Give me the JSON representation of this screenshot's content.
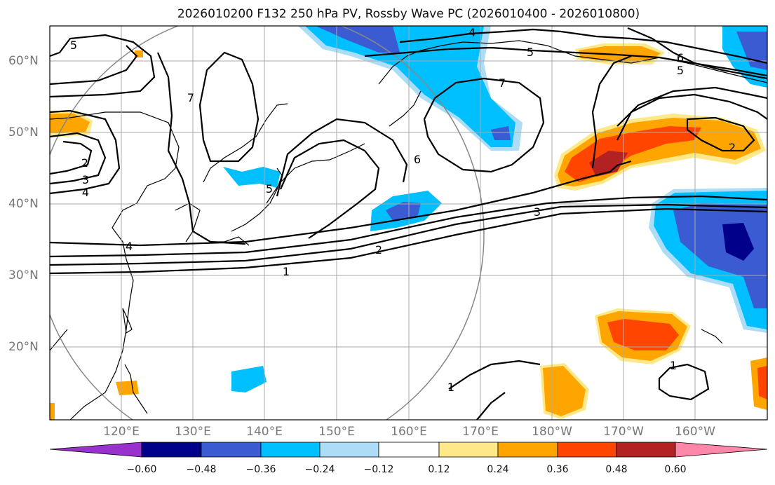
{
  "title": "2026010200 F132 250 hPa PV, Rossby Wave PC (2026010400 - 2026010800)",
  "lat_labels": [
    "60°N",
    "50°N",
    "40°N",
    "30°N",
    "20°N"
  ],
  "lon_labels": [
    "120°E",
    "130°E",
    "140°E",
    "150°E",
    "160°E",
    "170°E",
    "180°W",
    "170°W",
    "160°W"
  ],
  "contour_labels": [
    "1",
    "2",
    "3",
    "4",
    "5",
    "6",
    "7"
  ],
  "colorbar": {
    "ticks": [
      "−0.60",
      "−0.48",
      "−0.36",
      "−0.24",
      "−0.12",
      "0.12",
      "0.24",
      "0.36",
      "0.48",
      "0.60"
    ],
    "colors": [
      "#9932cc",
      "#00008b",
      "#3a5bd1",
      "#00bfff",
      "#addcf7",
      "#ffffff",
      "#fde98a",
      "#ffa500",
      "#ff4500",
      "#b22222",
      "#ff88aa"
    ]
  },
  "legend_colors": {
    "neg_strong": "#00008b",
    "neg_mid": "#3a5bd1",
    "neg": "#00bfff",
    "neg_weak": "#addcf7",
    "pos_weak": "#fde98a",
    "pos": "#ffa500",
    "pos_mid": "#ff4500",
    "pos_strong": "#b22222"
  }
}
